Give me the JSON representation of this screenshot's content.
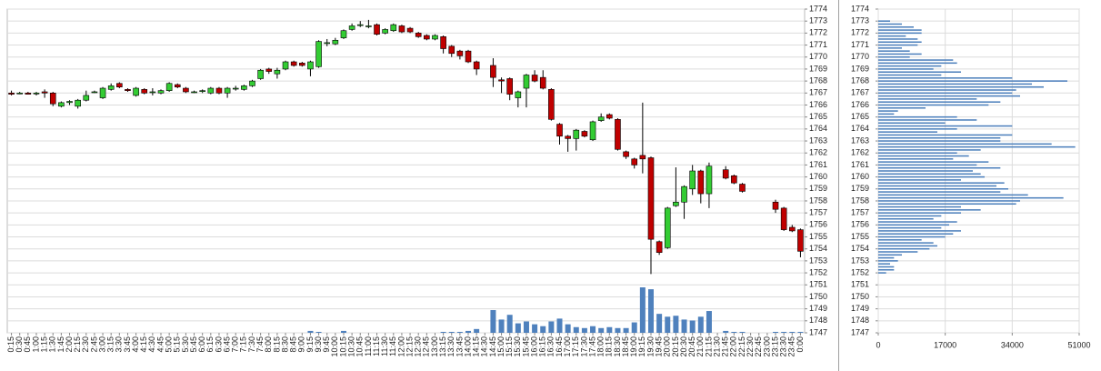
{
  "chart_data": [
    {
      "type": "candlestick",
      "x": [
        "0:15",
        "0:30",
        "0:45",
        "1:00",
        "1:15",
        "1:30",
        "1:45",
        "2:00",
        "2:15",
        "2:30",
        "2:45",
        "3:00",
        "3:15",
        "3:30",
        "3:45",
        "4:00",
        "4:15",
        "4:30",
        "4:45",
        "5:00",
        "5:15",
        "5:30",
        "5:45",
        "6:00",
        "6:15",
        "6:30",
        "6:45",
        "7:00",
        "7:15",
        "7:30",
        "7:45",
        "8:00",
        "8:15",
        "8:30",
        "8:45",
        "9:00",
        "9:15",
        "9:30",
        "9:45",
        "10:00",
        "10:15",
        "10:30",
        "10:45",
        "11:00",
        "11:15",
        "11:30",
        "11:45",
        "12:00",
        "12:15",
        "12:30",
        "12:45",
        "13:00",
        "13:15",
        "13:30",
        "13:45",
        "14:00",
        "14:15",
        "14:30",
        "14:45",
        "15:00",
        "15:15",
        "15:30",
        "15:45",
        "16:00",
        "16:15",
        "16:30",
        "16:45",
        "17:00",
        "17:15",
        "17:30",
        "17:45",
        "18:00",
        "18:15",
        "18:30",
        "18:45",
        "19:00",
        "19:15",
        "19:30",
        "19:45",
        "20:00",
        "20:15",
        "20:30",
        "20:45",
        "21:00",
        "21:15",
        "21:30",
        "21:45",
        "22:00",
        "22:15",
        "22:30",
        "22:45",
        "23:00",
        "23:15",
        "23:30",
        "23:45",
        "0:00"
      ],
      "open": [
        1767.0,
        1767.0,
        1767.0,
        1767.0,
        1767.1,
        1767.0,
        1765.9,
        1766.2,
        1765.9,
        1766.4,
        1767.1,
        1766.6,
        1767.3,
        1767.8,
        1767.3,
        1766.8,
        1767.3,
        1767.1,
        1767.0,
        1767.2,
        1767.7,
        1767.4,
        1767.1,
        1767.2,
        1767.0,
        1767.4,
        1767.0,
        1767.4,
        1767.3,
        1767.6,
        1768.2,
        1769.0,
        1768.6,
        1769.0,
        1769.6,
        1769.5,
        1769.0,
        1769.2,
        1771.2,
        1771.1,
        1771.6,
        1772.3,
        1772.7,
        1772.6,
        1772.7,
        1772.0,
        1772.2,
        1772.6,
        1772.4,
        1772.0,
        1771.8,
        1771.5,
        1771.7,
        1770.9,
        1770.5,
        1770.5,
        1769.6,
        null,
        1769.3,
        1768.1,
        1768.2,
        1766.6,
        1767.4,
        1768.5,
        1768.3,
        1767.3,
        1764.4,
        1763.4,
        1763.2,
        1763.8,
        1763.1,
        1764.7,
        1765.2,
        1764.8,
        1762.1,
        1761.5,
        1761.8,
        1761.6,
        1754.6,
        1754.1,
        1757.6,
        1757.9,
        1759.0,
        1760.5,
        1758.6,
        null,
        1760.6,
        1760.1,
        1759.4,
        null,
        null,
        null,
        1757.9,
        1757.4,
        1755.8,
        1755.6
      ],
      "high": [
        1767.2,
        1767.1,
        1767.1,
        1767.1,
        1767.3,
        1767.1,
        1766.3,
        1766.4,
        1766.5,
        1767.2,
        1767.2,
        1767.5,
        1767.8,
        1767.9,
        1767.4,
        1767.5,
        1767.4,
        1767.4,
        1767.3,
        1767.9,
        1767.8,
        1767.5,
        1767.2,
        1767.3,
        1767.5,
        1767.5,
        1767.5,
        1767.6,
        1767.7,
        1768.1,
        1769.0,
        1769.1,
        1769.1,
        1769.7,
        1769.7,
        1769.6,
        1769.7,
        1771.4,
        1771.5,
        1771.6,
        1772.3,
        1772.8,
        1773.0,
        1773.1,
        1772.8,
        1772.4,
        1772.8,
        1772.7,
        1772.5,
        1772.1,
        1771.9,
        1771.9,
        1771.8,
        1771.0,
        1770.6,
        1770.6,
        1769.7,
        null,
        1769.9,
        1768.3,
        1768.3,
        1767.2,
        1768.6,
        1768.9,
        1768.9,
        1767.4,
        1764.5,
        1763.5,
        1764.0,
        1763.9,
        1764.7,
        1765.3,
        1765.3,
        1764.9,
        1762.2,
        1761.6,
        1766.2,
        1761.7,
        1754.7,
        1757.5,
        1760.8,
        1759.3,
        1761.0,
        1760.6,
        1761.2,
        null,
        1760.9,
        1760.2,
        1759.5,
        null,
        null,
        null,
        1758.1,
        1757.5,
        1756.0,
        1755.7
      ],
      "low": [
        1766.8,
        1766.9,
        1766.9,
        1766.8,
        1766.6,
        1765.9,
        1765.8,
        1766.0,
        1765.7,
        1766.3,
        1767.0,
        1766.5,
        1767.2,
        1767.4,
        1767.1,
        1766.7,
        1766.9,
        1766.8,
        1766.9,
        1767.1,
        1767.4,
        1767.0,
        1767.0,
        1767.0,
        1766.9,
        1766.9,
        1766.6,
        1767.2,
        1767.2,
        1767.5,
        1768.1,
        1768.6,
        1768.2,
        1768.9,
        1769.2,
        1769.2,
        1768.4,
        1769.1,
        1770.9,
        1771.0,
        1771.5,
        1772.2,
        1772.5,
        1772.4,
        1771.8,
        1771.9,
        1772.1,
        1772.0,
        1772.0,
        1771.6,
        1771.4,
        1771.4,
        1770.3,
        1770.0,
        1769.8,
        1769.5,
        1768.5,
        null,
        1767.5,
        1767.0,
        1766.4,
        1765.8,
        1765.8,
        1767.9,
        1767.3,
        1764.7,
        1762.7,
        1762.1,
        1762.2,
        1763.3,
        1763.0,
        1764.6,
        1764.8,
        1762.2,
        1761.5,
        1760.7,
        1760.3,
        1751.9,
        1753.5,
        1754.0,
        1757.5,
        1756.5,
        1758.5,
        1757.8,
        1757.4,
        null,
        1759.8,
        1759.4,
        1758.7,
        null,
        null,
        null,
        1757.0,
        1755.5,
        1755.4,
        1753.3
      ],
      "close": [
        1766.9,
        1767.0,
        1766.9,
        1767.0,
        1767.0,
        1766.1,
        1766.2,
        1766.3,
        1766.4,
        1766.8,
        1767.1,
        1767.4,
        1767.6,
        1767.5,
        1767.2,
        1767.4,
        1767.0,
        1767.1,
        1767.2,
        1767.8,
        1767.5,
        1767.1,
        1767.1,
        1767.2,
        1767.4,
        1767.0,
        1767.4,
        1767.4,
        1767.6,
        1768.0,
        1768.9,
        1768.8,
        1768.9,
        1769.6,
        1769.3,
        1769.3,
        1769.6,
        1771.3,
        1771.2,
        1771.4,
        1772.2,
        1772.6,
        1772.7,
        1772.6,
        1771.9,
        1772.3,
        1772.7,
        1772.1,
        1772.1,
        1771.7,
        1771.5,
        1771.8,
        1770.7,
        1770.3,
        1770.1,
        1769.6,
        1769.0,
        null,
        1768.3,
        1768.0,
        1766.9,
        1767.1,
        1768.5,
        1768.0,
        1767.4,
        1764.8,
        1763.4,
        1763.2,
        1763.9,
        1763.4,
        1764.6,
        1765.0,
        1764.9,
        1762.3,
        1761.7,
        1761.0,
        1761.5,
        1754.8,
        1753.7,
        1757.4,
        1757.9,
        1759.2,
        1760.5,
        1758.6,
        1760.9,
        null,
        1759.9,
        1759.5,
        1758.8,
        null,
        null,
        null,
        1757.3,
        1755.6,
        1755.5,
        1753.8
      ],
      "volume": [
        0,
        0,
        0,
        0,
        0,
        0,
        0,
        0,
        0,
        0,
        0,
        0,
        0,
        0,
        0,
        0,
        0,
        0,
        0,
        0,
        0,
        0,
        0,
        0,
        0,
        0,
        0,
        0,
        0,
        0,
        0,
        0,
        0,
        0,
        0,
        0,
        2,
        1,
        0,
        0,
        2,
        0,
        0,
        0,
        0,
        0,
        0,
        0,
        0,
        0,
        0,
        0,
        1,
        1,
        1,
        2,
        4,
        null,
        24,
        14,
        19,
        10,
        12,
        9,
        7,
        12,
        15,
        9,
        6,
        5,
        7,
        5,
        6,
        5,
        5,
        11,
        48,
        46,
        20,
        17,
        18,
        14,
        13,
        17,
        23,
        null,
        2,
        1,
        1,
        null,
        null,
        null,
        1,
        1,
        1,
        1
      ],
      "up_color": "#33cc33",
      "down_color": "#c00000",
      "volume_color": "#4f81bd",
      "ylim": [
        1747,
        1774
      ],
      "yticks": [
        1747,
        1748,
        1749,
        1750,
        1751,
        1752,
        1753,
        1754,
        1755,
        1756,
        1757,
        1758,
        1759,
        1760,
        1761,
        1762,
        1763,
        1764,
        1765,
        1766,
        1767,
        1768,
        1769,
        1770,
        1771,
        1772,
        1773,
        1774
      ],
      "grid": true
    },
    {
      "type": "barh",
      "color": "#4a7ebb",
      "levels": [
        1773.0,
        1772.75,
        1772.5,
        1772.25,
        1772.0,
        1771.75,
        1771.5,
        1771.25,
        1771.0,
        1770.75,
        1770.5,
        1770.25,
        1770.0,
        1769.75,
        1769.5,
        1769.25,
        1769.0,
        1768.75,
        1768.5,
        1768.25,
        1768.0,
        1767.75,
        1767.5,
        1767.25,
        1767.0,
        1766.75,
        1766.5,
        1766.25,
        1766.0,
        1765.75,
        1765.5,
        1765.25,
        1765.0,
        1764.75,
        1764.5,
        1764.25,
        1764.0,
        1763.75,
        1763.5,
        1763.25,
        1763.0,
        1762.75,
        1762.5,
        1762.25,
        1762.0,
        1761.75,
        1761.5,
        1761.25,
        1761.0,
        1760.75,
        1760.5,
        1760.25,
        1760.0,
        1759.75,
        1759.5,
        1759.25,
        1759.0,
        1758.75,
        1758.5,
        1758.25,
        1758.0,
        1757.75,
        1757.5,
        1757.25,
        1757.0,
        1756.75,
        1756.5,
        1756.25,
        1756.0,
        1755.75,
        1755.5,
        1755.25,
        1755.0,
        1754.75,
        1754.5,
        1754.25,
        1754.0,
        1753.75,
        1753.5,
        1753.25,
        1753.0,
        1752.75,
        1752.5,
        1752.25,
        1752.0
      ],
      "values": [
        3000,
        6000,
        9000,
        11000,
        11000,
        7000,
        10000,
        11000,
        10000,
        6000,
        8000,
        11000,
        8000,
        19000,
        20000,
        16000,
        14000,
        21000,
        16000,
        34000,
        48000,
        39000,
        42000,
        35000,
        34000,
        36000,
        25000,
        31000,
        28000,
        12000,
        5000,
        4000,
        20000,
        25000,
        17000,
        34000,
        20000,
        15000,
        34000,
        31000,
        31000,
        44000,
        50000,
        26000,
        20000,
        23000,
        19000,
        28000,
        25000,
        31000,
        24000,
        26000,
        27000,
        21000,
        32000,
        30000,
        33000,
        31000,
        38000,
        47000,
        36000,
        35000,
        21000,
        26000,
        21000,
        16000,
        14000,
        20000,
        18000,
        16000,
        21000,
        19000,
        17000,
        11000,
        14000,
        15000,
        13000,
        10000,
        6000,
        4000,
        5000,
        3000,
        4000,
        4000,
        2000
      ],
      "xlim": [
        0,
        51000
      ],
      "xticks": [
        0,
        17000,
        34000,
        51000
      ],
      "ylim": [
        1747,
        1774
      ],
      "yticks": [
        1747,
        1748,
        1749,
        1750,
        1751,
        1752,
        1753,
        1754,
        1755,
        1756,
        1757,
        1758,
        1759,
        1760,
        1761,
        1762,
        1763,
        1764,
        1765,
        1766,
        1767,
        1768,
        1769,
        1770,
        1771,
        1772,
        1773,
        1774
      ],
      "grid": true
    }
  ]
}
